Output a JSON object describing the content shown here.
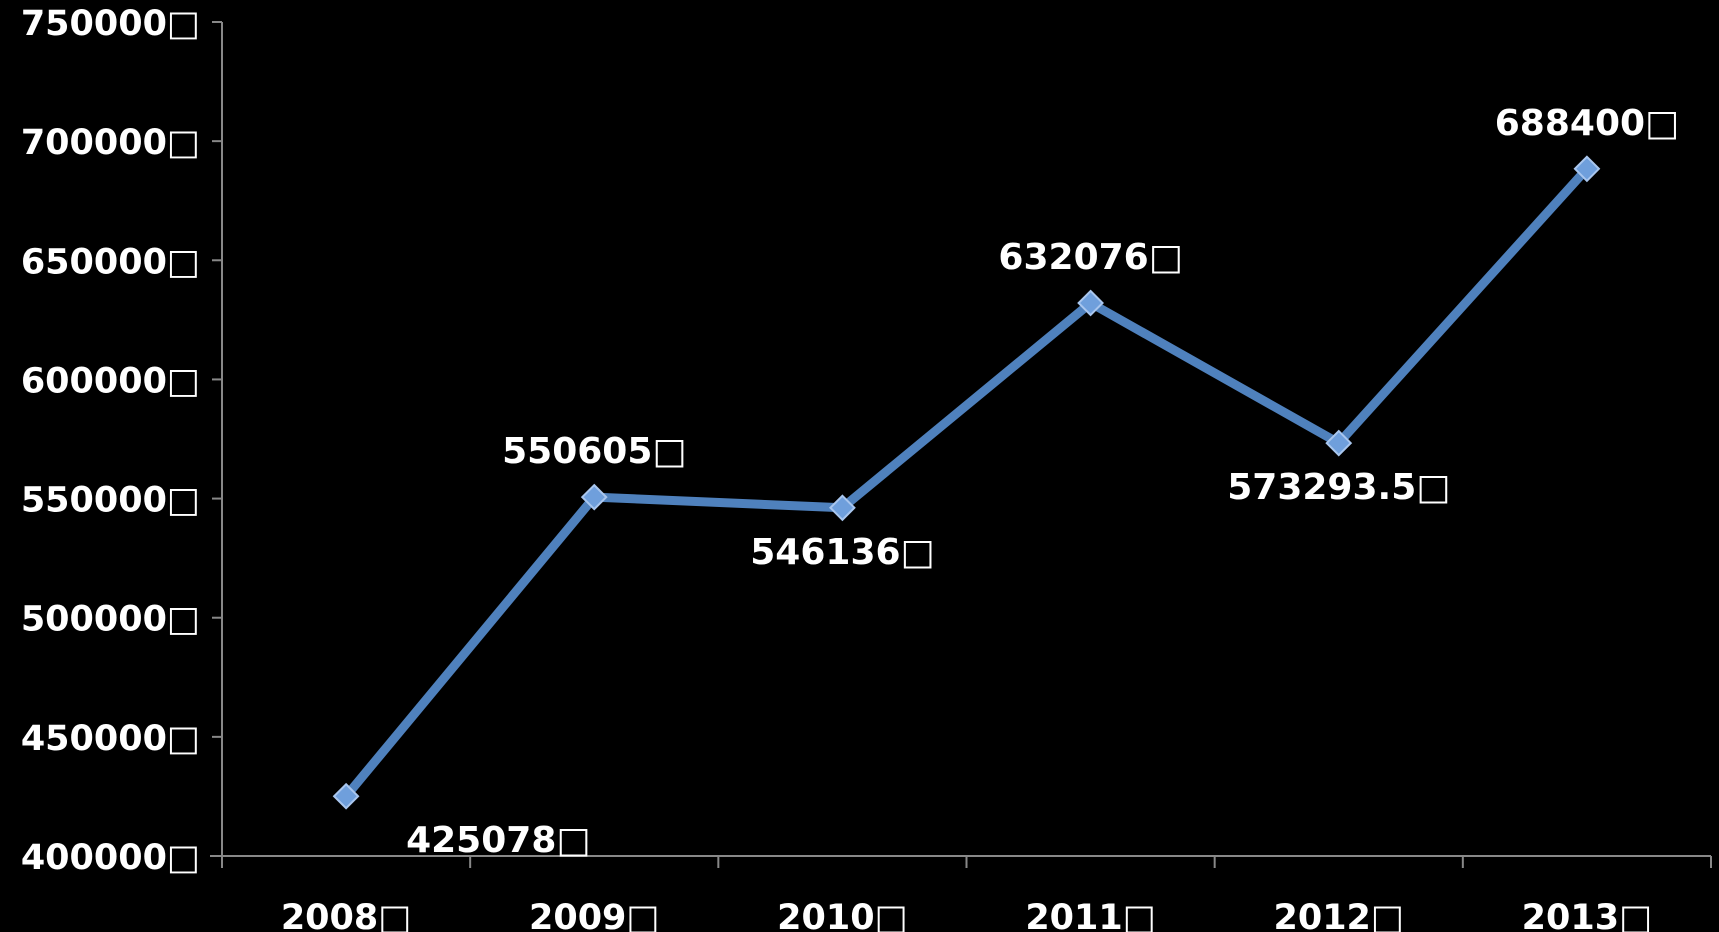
{
  "chart_data": {
    "type": "line",
    "categories": [
      "2008",
      "2009",
      "2010",
      "2011",
      "2012",
      "2013"
    ],
    "series": [
      {
        "values": [
          425078,
          550605,
          546136,
          632076,
          573293.5,
          688400
        ]
      }
    ],
    "data_labels": [
      "425078",
      "550605",
      "546136",
      "632076",
      "573293.5",
      "688400"
    ],
    "y_ticks": [
      400000,
      450000,
      500000,
      550000,
      600000,
      650000,
      700000,
      750000
    ],
    "y_tick_labels": [
      "400000",
      "450000",
      "500000",
      "550000",
      "600000",
      "650000",
      "700000",
      "750000"
    ],
    "ylim": [
      400000,
      750000
    ],
    "unit_glyph": "□",
    "title": "",
    "xlabel": "",
    "ylabel": "",
    "grid": false,
    "legend": "none",
    "line_color": "#4f81bd",
    "marker_color": "#6f9fdc",
    "axis_color": "#888888",
    "text_color": "#ffffff",
    "background_color": "#000000"
  }
}
